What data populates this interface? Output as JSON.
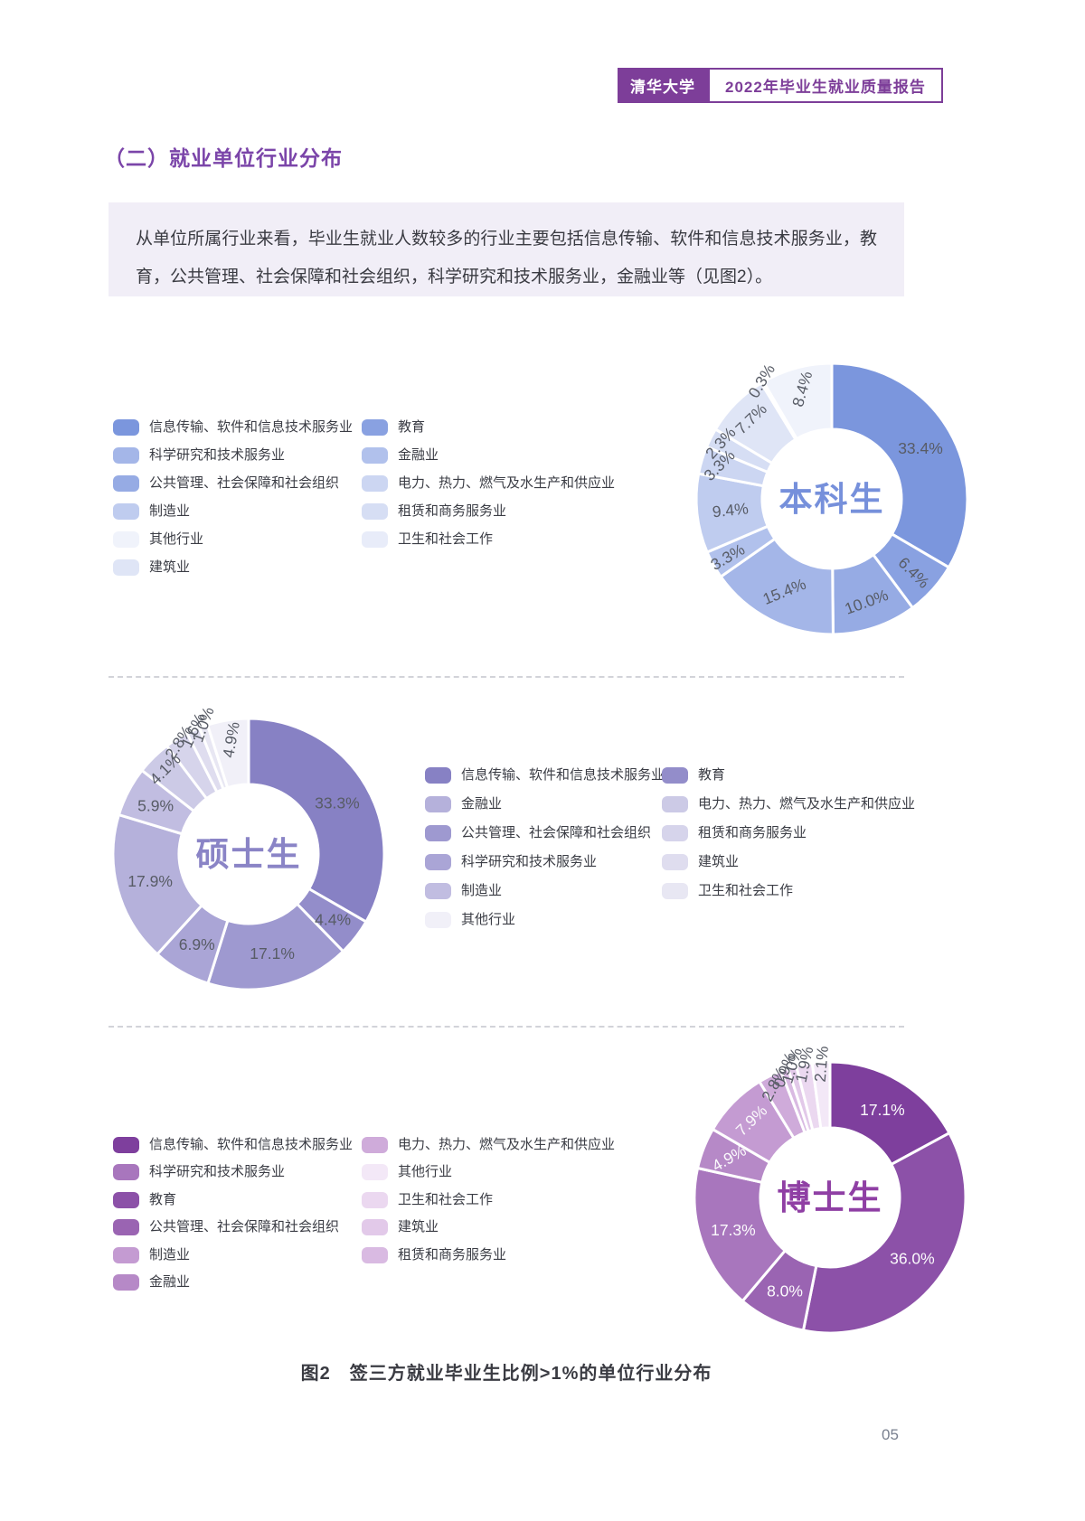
{
  "page_number": "05",
  "header": {
    "badge": "清华大学",
    "title": "2022年毕业生就业质量报告"
  },
  "section_heading": "（二）就业单位行业分布",
  "intro_text": "从单位所属行业来看，毕业生就业人数较多的行业主要包括信息传输、软件和信息技术服务业，教育，公共管理、社会保障和社会组织，科学研究和技术服务业，金融业等（见图2）。",
  "figure_caption": "图2　签三方就业毕业生比例>1%的单位行业分布",
  "colors": {
    "accent": "#7d3e99",
    "heading": "#7b45a9",
    "intro_bg": "#f1eef7",
    "text": "#3a3b42",
    "dash": "#d2d3d9",
    "page_number": "#79808f",
    "slice_label_dark": "#585c66",
    "slice_label_light": "#fbfafc"
  },
  "chart_data": [
    {
      "type": "pie",
      "donut": true,
      "center_label": "本科生",
      "center_color": "#7690db",
      "slices": [
        {
          "label": "信息传输、软件和信息技术服务业",
          "value": 33.4,
          "color": "#7b96dd",
          "rot": 0,
          "lr": 113,
          "light": false
        },
        {
          "label": "教育",
          "value": 6.4,
          "color": "#89a1e1",
          "rot": 45,
          "lr": 122,
          "light": false
        },
        {
          "label": "公共管理、社会保障和社会组织",
          "value": 10.0,
          "color": "#96abe4",
          "rot": -20,
          "lr": 120,
          "light": false
        },
        {
          "label": "科学研究和技术服务业",
          "value": 15.4,
          "color": "#a4b6e8",
          "rot": -22,
          "lr": 115,
          "light": false
        },
        {
          "label": "金融业",
          "value": 3.3,
          "color": "#b1c1ec",
          "rot": -30,
          "lr": 132,
          "light": false
        },
        {
          "label": "制造业",
          "value": 9.4,
          "color": "#bfccef",
          "rot": -6,
          "lr": 113,
          "light": false
        },
        {
          "label": "电力、热力、燃气及水生产和供应业",
          "value": 3.3,
          "color": "#ccd6f2",
          "rot": -45,
          "lr": 130,
          "light": false
        },
        {
          "label": "租赁和商务服务业",
          "value": 2.3,
          "color": "#d6def4",
          "rot": -48,
          "lr": 138,
          "light": false
        },
        {
          "label": "建筑业",
          "value": 7.7,
          "color": "#dfe5f6",
          "rot": -44,
          "lr": 126,
          "light": false
        },
        {
          "label": "卫生和社会工作",
          "value": 0.3,
          "color": "#e8ecf9",
          "rot": -59,
          "lr": 152,
          "light": false
        },
        {
          "label": "其他行业",
          "value": 8.4,
          "color": "#f0f3fb",
          "rot": -74,
          "lr": 126,
          "light": false
        }
      ],
      "legend_col1": [
        {
          "label": "信息传输、软件和信息技术服务业",
          "color": "#7b96dd"
        },
        {
          "label": "科学研究和技术服务业",
          "color": "#a4b6e8"
        },
        {
          "label": "公共管理、社会保障和社会组织",
          "color": "#96abe4"
        },
        {
          "label": "制造业",
          "color": "#bfccef"
        },
        {
          "label": "其他行业",
          "color": "#f0f3fb"
        },
        {
          "label": "建筑业",
          "color": "#dfe5f6"
        }
      ],
      "legend_col2": [
        {
          "label": "教育",
          "color": "#89a1e1"
        },
        {
          "label": "金融业",
          "color": "#b1c1ec"
        },
        {
          "label": "电力、热力、燃气及水生产和供应业",
          "color": "#ccd6f2"
        },
        {
          "label": "租赁和商务服务业",
          "color": "#d6def4"
        },
        {
          "label": "卫生和社会工作",
          "color": "#e8ecf9"
        }
      ]
    },
    {
      "type": "pie",
      "donut": true,
      "center_label": "硕士生",
      "center_color": "#8a84c6",
      "slices": [
        {
          "label": "信息传输、软件和信息技术服务业",
          "value": 33.3,
          "color": "#8781c4",
          "rot": 0,
          "lr": 113,
          "light": false
        },
        {
          "label": "教育",
          "value": 4.4,
          "color": "#938dca",
          "rot": 0,
          "lr": 118,
          "light": false
        },
        {
          "label": "公共管理、社会保障和社会组织",
          "value": 17.1,
          "color": "#9e99d0",
          "rot": 0,
          "lr": 113,
          "light": false
        },
        {
          "label": "科学研究和技术服务业",
          "value": 6.9,
          "color": "#aaa5d6",
          "rot": 0,
          "lr": 115,
          "light": false
        },
        {
          "label": "金融业",
          "value": 17.9,
          "color": "#b5b1db",
          "rot": 0,
          "lr": 113,
          "light": false
        },
        {
          "label": "制造业",
          "value": 5.9,
          "color": "#c1bde1",
          "rot": 0,
          "lr": 116,
          "light": false
        },
        {
          "label": "电力、热力、燃气及水生产和供应业",
          "value": 4.1,
          "color": "#cccae6",
          "rot": -45,
          "lr": 132,
          "light": false
        },
        {
          "label": "租赁和商务服务业",
          "value": 2.8,
          "color": "#d6d4eb",
          "rot": -57,
          "lr": 146,
          "light": false
        },
        {
          "label": "建筑业",
          "value": 1.6,
          "color": "#dfddef",
          "rot": -65,
          "lr": 150,
          "light": false
        },
        {
          "label": "卫生和社会工作",
          "value": 1.0,
          "color": "#e8e7f3",
          "rot": -70,
          "lr": 152,
          "light": false
        },
        {
          "label": "其他行业",
          "value": 4.9,
          "color": "#f1f0f8",
          "rot": -80,
          "lr": 128,
          "light": false
        }
      ],
      "legend_col1": [
        {
          "label": "信息传输、软件和信息技术服务业",
          "color": "#8781c4"
        },
        {
          "label": "金融业",
          "color": "#b5b1db"
        },
        {
          "label": "公共管理、社会保障和社会组织",
          "color": "#9e99d0"
        },
        {
          "label": "科学研究和技术服务业",
          "color": "#aaa5d6"
        },
        {
          "label": "制造业",
          "color": "#c1bde1"
        },
        {
          "label": "其他行业",
          "color": "#f1f0f8"
        }
      ],
      "legend_col2": [
        {
          "label": "教育",
          "color": "#938dca"
        },
        {
          "label": "电力、热力、燃气及水生产和供应业",
          "color": "#cccae6"
        },
        {
          "label": "租赁和商务服务业",
          "color": "#d6d4eb"
        },
        {
          "label": "建筑业",
          "color": "#dfddef"
        },
        {
          "label": "卫生和社会工作",
          "color": "#e8e7f3"
        }
      ]
    },
    {
      "type": "pie",
      "donut": true,
      "center_label": "博士生",
      "center_color": "#8f3fa4",
      "slices": [
        {
          "label": "信息传输、软件和信息技术服务业",
          "value": 17.1,
          "color": "#7e3f9d",
          "rot": 0,
          "lr": 113,
          "light": true
        },
        {
          "label": "教育",
          "value": 36.0,
          "color": "#8c51a8",
          "rot": 0,
          "lr": 113,
          "light": true
        },
        {
          "label": "公共管理、社会保障和社会组织",
          "value": 8.0,
          "color": "#9a64b2",
          "rot": 0,
          "lr": 115,
          "light": true
        },
        {
          "label": "科学研究和技术服务业",
          "value": 17.3,
          "color": "#a876bd",
          "rot": 0,
          "lr": 113,
          "light": true
        },
        {
          "label": "金融业",
          "value": 4.9,
          "color": "#b689c7",
          "rot": -30,
          "lr": 120,
          "light": true
        },
        {
          "label": "制造业",
          "value": 7.9,
          "color": "#c49bd2",
          "rot": -44,
          "lr": 122,
          "light": true
        },
        {
          "label": "电力、热力、燃气及水生产和供应业",
          "value": 2.8,
          "color": "#cfabda",
          "rot": -63,
          "lr": 140,
          "light": false
        },
        {
          "label": "租赁和商务服务业",
          "value": 0.9,
          "color": "#d9bae2",
          "rot": -70,
          "lr": 150,
          "light": false
        },
        {
          "label": "建筑业",
          "value": 1.0,
          "color": "#e2c9e9",
          "rot": -73,
          "lr": 152,
          "light": false
        },
        {
          "label": "卫生和社会工作",
          "value": 1.9,
          "color": "#ebd8f0",
          "rot": -78,
          "lr": 150,
          "light": false
        },
        {
          "label": "其他行业",
          "value": 2.1,
          "color": "#f3e8f7",
          "rot": -85,
          "lr": 148,
          "light": false
        }
      ],
      "legend_col1": [
        {
          "label": "信息传输、软件和信息技术服务业",
          "color": "#7e3f9d"
        },
        {
          "label": "科学研究和技术服务业",
          "color": "#a876bd"
        },
        {
          "label": "教育",
          "color": "#8c51a8"
        },
        {
          "label": "公共管理、社会保障和社会组织",
          "color": "#9a64b2"
        },
        {
          "label": "制造业",
          "color": "#c49bd2"
        },
        {
          "label": "金融业",
          "color": "#b689c7"
        }
      ],
      "legend_col2": [
        {
          "label": "电力、热力、燃气及水生产和供应业",
          "color": "#cfabda"
        },
        {
          "label": "其他行业",
          "color": "#f3e8f7"
        },
        {
          "label": "卫生和社会工作",
          "color": "#ebd8f0"
        },
        {
          "label": "建筑业",
          "color": "#e2c9e9"
        },
        {
          "label": "租赁和商务服务业",
          "color": "#d9bae2"
        }
      ]
    }
  ]
}
